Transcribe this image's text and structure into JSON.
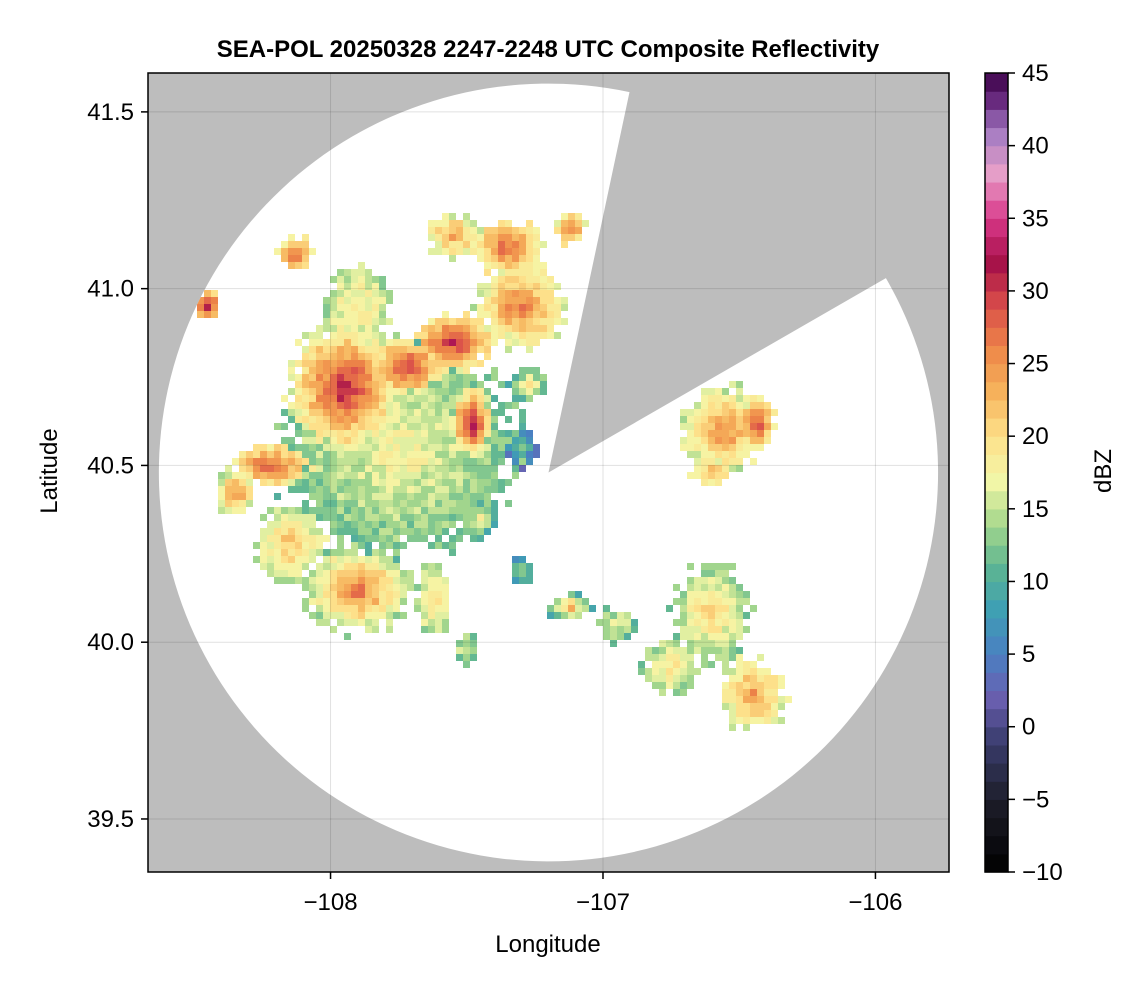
{
  "chart_data": {
    "type": "heatmap",
    "title": "SEA-POL 20250328 2247-2248 UTC Composite Reflectivity",
    "xlabel": "Longitude",
    "ylabel": "Latitude",
    "xlim": [
      -108.67,
      -105.73
    ],
    "ylim": [
      39.35,
      41.61
    ],
    "xticks": [
      -108,
      -107,
      -106
    ],
    "xtick_labels": [
      "−108",
      "−107",
      "−106"
    ],
    "yticks": [
      39.5,
      40.0,
      40.5,
      41.0,
      41.5
    ],
    "ytick_labels": [
      "39.5",
      "40.0",
      "40.5",
      "41.0",
      "41.5"
    ],
    "grid": true,
    "background_color": "#bdbdbd",
    "radar": {
      "center_lon": -107.2,
      "center_lat": 40.48,
      "range_lon_deg": 1.43,
      "range_lat_deg": 1.1,
      "blocked_sectors_deg_from_north": [
        [
          12,
          60
        ]
      ]
    },
    "colorbar": {
      "label": "dBZ",
      "min": -10,
      "max": 45,
      "step": 1.25,
      "ticks": [
        -10,
        -5,
        0,
        5,
        10,
        15,
        20,
        25,
        30,
        35,
        40,
        45
      ],
      "tick_labels": [
        "−10",
        "−5",
        "0",
        "5",
        "10",
        "15",
        "20",
        "25",
        "30",
        "35",
        "40",
        "45"
      ],
      "colormap_stops": [
        {
          "v": -10,
          "c": "#000000"
        },
        {
          "v": -5,
          "c": "#1e1e2a"
        },
        {
          "v": -1,
          "c": "#3a3d6e"
        },
        {
          "v": 2,
          "c": "#6a5fb0"
        },
        {
          "v": 5,
          "c": "#4a80c2"
        },
        {
          "v": 8,
          "c": "#3e9fb4"
        },
        {
          "v": 11,
          "c": "#5db592"
        },
        {
          "v": 14,
          "c": "#a7d88c"
        },
        {
          "v": 17,
          "c": "#f4f7a8"
        },
        {
          "v": 20,
          "c": "#fde08a"
        },
        {
          "v": 23,
          "c": "#f6b35c"
        },
        {
          "v": 26,
          "c": "#ee8748"
        },
        {
          "v": 29,
          "c": "#d94e4a"
        },
        {
          "v": 32,
          "c": "#a51049"
        },
        {
          "v": 35,
          "c": "#d9398a"
        },
        {
          "v": 38,
          "c": "#e8a0c8"
        },
        {
          "v": 41,
          "c": "#a27ac2"
        },
        {
          "v": 43,
          "c": "#6b2d82"
        },
        {
          "v": 45,
          "c": "#3b0047"
        }
      ]
    },
    "echo_cells": [
      {
        "lon": -107.75,
        "lat": 40.55,
        "rlon": 0.42,
        "rlat": 0.3,
        "peak_dbz": 18,
        "base_dbz": 12
      },
      {
        "lon": -107.95,
        "lat": 40.72,
        "rlon": 0.2,
        "rlat": 0.18,
        "peak_dbz": 32,
        "base_dbz": 16
      },
      {
        "lon": -107.72,
        "lat": 40.78,
        "rlon": 0.13,
        "rlat": 0.08,
        "peak_dbz": 30,
        "base_dbz": 18
      },
      {
        "lon": -107.55,
        "lat": 40.85,
        "rlon": 0.15,
        "rlat": 0.08,
        "peak_dbz": 31,
        "base_dbz": 18
      },
      {
        "lon": -107.48,
        "lat": 40.62,
        "rlon": 0.08,
        "rlat": 0.1,
        "peak_dbz": 33,
        "base_dbz": 16
      },
      {
        "lon": -108.22,
        "lat": 40.5,
        "rlon": 0.14,
        "rlat": 0.06,
        "peak_dbz": 29,
        "base_dbz": 18
      },
      {
        "lon": -108.35,
        "lat": 40.42,
        "rlon": 0.07,
        "rlat": 0.06,
        "peak_dbz": 26,
        "base_dbz": 16
      },
      {
        "lon": -108.15,
        "lat": 40.28,
        "rlon": 0.13,
        "rlat": 0.1,
        "peak_dbz": 22,
        "base_dbz": 15
      },
      {
        "lon": -107.9,
        "lat": 40.15,
        "rlon": 0.2,
        "rlat": 0.12,
        "peak_dbz": 27,
        "base_dbz": 14
      },
      {
        "lon": -107.62,
        "lat": 40.12,
        "rlon": 0.06,
        "rlat": 0.1,
        "peak_dbz": 22,
        "base_dbz": 14
      },
      {
        "lon": -107.9,
        "lat": 40.95,
        "rlon": 0.12,
        "rlat": 0.12,
        "peak_dbz": 20,
        "base_dbz": 14
      },
      {
        "lon": -107.3,
        "lat": 40.95,
        "rlon": 0.16,
        "rlat": 0.12,
        "peak_dbz": 27,
        "base_dbz": 16
      },
      {
        "lon": -107.35,
        "lat": 41.12,
        "rlon": 0.12,
        "rlat": 0.08,
        "peak_dbz": 28,
        "base_dbz": 18
      },
      {
        "lon": -107.55,
        "lat": 41.15,
        "rlon": 0.1,
        "rlat": 0.06,
        "peak_dbz": 24,
        "base_dbz": 16
      },
      {
        "lon": -107.12,
        "lat": 41.17,
        "rlon": 0.05,
        "rlat": 0.05,
        "peak_dbz": 27,
        "base_dbz": 18
      },
      {
        "lon": -108.13,
        "lat": 41.1,
        "rlon": 0.06,
        "rlat": 0.05,
        "peak_dbz": 28,
        "base_dbz": 18
      },
      {
        "lon": -108.45,
        "lat": 40.95,
        "rlon": 0.04,
        "rlat": 0.04,
        "peak_dbz": 34,
        "base_dbz": 20
      },
      {
        "lon": -107.27,
        "lat": 40.73,
        "rlon": 0.07,
        "rlat": 0.05,
        "peak_dbz": 20,
        "base_dbz": 10
      },
      {
        "lon": -106.55,
        "lat": 40.6,
        "rlon": 0.16,
        "rlat": 0.12,
        "peak_dbz": 26,
        "base_dbz": 15
      },
      {
        "lon": -106.43,
        "lat": 40.62,
        "rlon": 0.06,
        "rlat": 0.07,
        "peak_dbz": 31,
        "base_dbz": 18
      },
      {
        "lon": -106.6,
        "lat": 40.48,
        "rlon": 0.08,
        "rlat": 0.04,
        "peak_dbz": 24,
        "base_dbz": 16
      },
      {
        "lon": -106.6,
        "lat": 40.08,
        "rlon": 0.14,
        "rlat": 0.14,
        "peak_dbz": 21,
        "base_dbz": 13
      },
      {
        "lon": -106.75,
        "lat": 39.93,
        "rlon": 0.1,
        "rlat": 0.08,
        "peak_dbz": 20,
        "base_dbz": 13
      },
      {
        "lon": -106.45,
        "lat": 39.85,
        "rlon": 0.12,
        "rlat": 0.1,
        "peak_dbz": 25,
        "base_dbz": 16
      },
      {
        "lon": -107.12,
        "lat": 40.1,
        "rlon": 0.08,
        "rlat": 0.04,
        "peak_dbz": 24,
        "base_dbz": 10
      },
      {
        "lon": -106.95,
        "lat": 40.05,
        "rlon": 0.06,
        "rlat": 0.05,
        "peak_dbz": 18,
        "base_dbz": 12
      },
      {
        "lon": -107.45,
        "lat": 40.35,
        "rlon": 0.06,
        "rlat": 0.05,
        "peak_dbz": 18,
        "base_dbz": 9
      },
      {
        "lon": -107.3,
        "lat": 40.2,
        "rlon": 0.04,
        "rlat": 0.04,
        "peak_dbz": 14,
        "base_dbz": 8
      },
      {
        "lon": -107.5,
        "lat": 39.98,
        "rlon": 0.04,
        "rlat": 0.05,
        "peak_dbz": 17,
        "base_dbz": 12
      },
      {
        "lon": -107.3,
        "lat": 40.55,
        "rlon": 0.06,
        "rlat": 0.06,
        "peak_dbz": 12,
        "base_dbz": 4
      },
      {
        "lon": -107.68,
        "lat": 40.42,
        "rlon": 0.06,
        "rlat": 0.025,
        "peak_dbz": 5,
        "base_dbz": 5
      }
    ]
  }
}
